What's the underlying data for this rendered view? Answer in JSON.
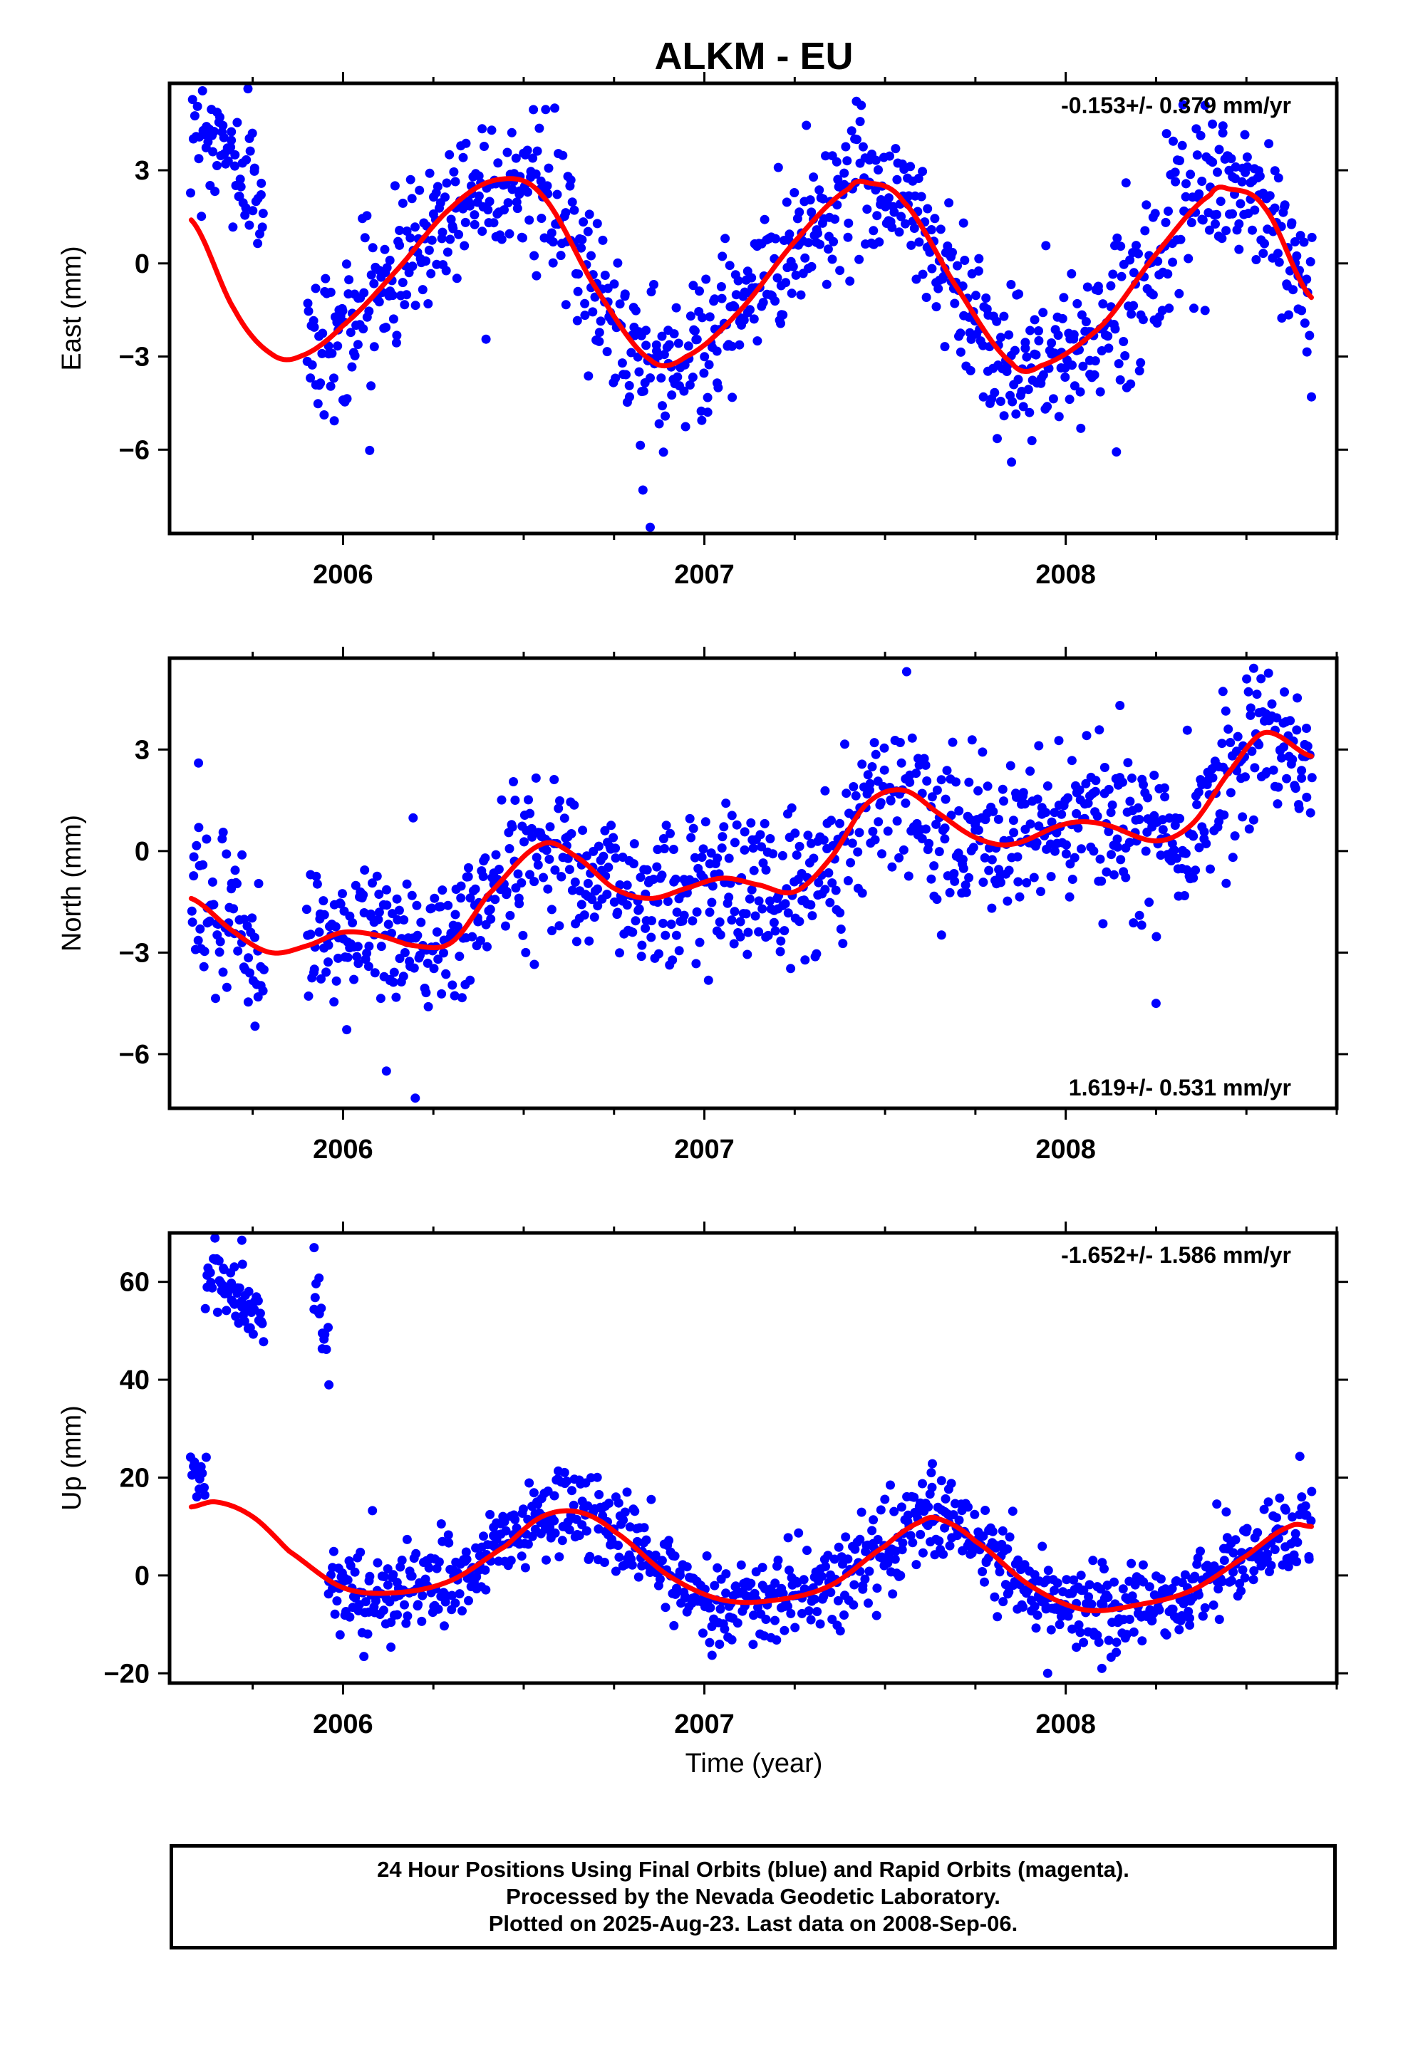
{
  "title": "ALKM - EU",
  "xlabel": "Time (year)",
  "footer": {
    "line1": "24 Hour Positions Using Final Orbits (blue) and Rapid Orbits (magenta).",
    "line2": "Processed by the Nevada Geodetic Laboratory.",
    "line3": "Plotted on 2025-Aug-23. Last data on 2008-Sep-06."
  },
  "colors": {
    "points": "#0000ff",
    "model": "#ff0000",
    "axes": "#000000"
  },
  "chart_data": [
    {
      "type": "scatter",
      "name": "east",
      "ylabel": "East (mm)",
      "xlim": [
        2005.52,
        2008.75
      ],
      "ylim": [
        -8.7,
        5.8
      ],
      "xticks": [
        2006,
        2007,
        2008
      ],
      "xtick_labels": [
        "2006",
        "2007",
        "2008"
      ],
      "yticks": [
        3,
        0,
        -3,
        -6
      ],
      "ytick_labels": [
        "3",
        "0",
        "−3",
        "−6"
      ],
      "rate_text": "-0.153+/- 0.379 mm/yr",
      "rate_position": "top-right",
      "model_line": {
        "x": [
          2005.58,
          2005.7,
          2005.8,
          2005.88,
          2006.0,
          2006.15,
          2006.3,
          2006.43,
          2006.55,
          2006.7,
          2006.85,
          2006.95,
          2007.1,
          2007.25,
          2007.4,
          2007.45,
          2007.55,
          2007.7,
          2007.85,
          2007.93,
          2008.1,
          2008.25,
          2008.4,
          2008.45,
          2008.55,
          2008.68
        ],
        "y": [
          1.4,
          -1.5,
          -2.9,
          -3.0,
          -2.0,
          -0.2,
          1.8,
          2.7,
          2.2,
          -0.8,
          -3.1,
          -3.0,
          -1.5,
          0.7,
          2.4,
          2.6,
          2.0,
          -0.8,
          -3.2,
          -3.3,
          -2.0,
          0.3,
          2.2,
          2.4,
          1.8,
          -1.1
        ]
      },
      "segments": [
        {
          "x0": 2005.58,
          "x1": 2005.78,
          "base": [
            5.0,
            2.0
          ],
          "noise": 1.0,
          "count": 70
        },
        {
          "x0": 2005.9,
          "x1": 2008.68,
          "base": "model",
          "noise": 1.2,
          "count": 950
        }
      ],
      "extreme_points": [
        {
          "x": 2006.85,
          "y": -8.5
        },
        {
          "x": 2006.83,
          "y": -7.3
        },
        {
          "x": 2007.85,
          "y": -6.4
        },
        {
          "x": 2008.68,
          "y": -4.3
        },
        {
          "x": 2006.0,
          "y": -4.4
        }
      ]
    },
    {
      "type": "scatter",
      "name": "north",
      "ylabel": "North (mm)",
      "xlim": [
        2005.52,
        2008.75
      ],
      "ylim": [
        -7.6,
        5.7
      ],
      "xticks": [
        2006,
        2007,
        2008
      ],
      "xtick_labels": [
        "2006",
        "2007",
        "2008"
      ],
      "yticks": [
        3,
        0,
        -3,
        -6
      ],
      "ytick_labels": [
        "3",
        "0",
        "−3",
        "−6"
      ],
      "rate_text": "1.619+/- 0.531 mm/yr",
      "rate_position": "bottom-right",
      "model_line": {
        "x": [
          2005.58,
          2005.7,
          2005.8,
          2005.9,
          2006.0,
          2006.1,
          2006.2,
          2006.3,
          2006.4,
          2006.55,
          2006.65,
          2006.75,
          2006.85,
          2006.95,
          2007.05,
          2007.15,
          2007.25,
          2007.35,
          2007.45,
          2007.55,
          2007.65,
          2007.75,
          2007.85,
          2008.0,
          2008.1,
          2008.25,
          2008.35,
          2008.45,
          2008.55,
          2008.68
        ],
        "y": [
          -1.4,
          -2.4,
          -3.0,
          -2.8,
          -2.4,
          -2.5,
          -2.8,
          -2.7,
          -1.3,
          0.2,
          -0.2,
          -1.1,
          -1.4,
          -1.1,
          -0.8,
          -1.0,
          -1.2,
          -0.2,
          1.4,
          1.8,
          1.1,
          0.4,
          0.2,
          0.8,
          0.8,
          0.3,
          0.8,
          2.3,
          3.5,
          2.8
        ]
      },
      "segments": [
        {
          "x0": 2005.58,
          "x1": 2005.78,
          "base": "model",
          "noise": 1.1,
          "count": 70
        },
        {
          "x0": 2005.9,
          "x1": 2008.68,
          "base": "model",
          "noise": 1.1,
          "count": 950
        }
      ],
      "extreme_points": [
        {
          "x": 2006.2,
          "y": -7.3
        },
        {
          "x": 2006.12,
          "y": -6.5
        },
        {
          "x": 2008.25,
          "y": -4.5
        },
        {
          "x": 2005.6,
          "y": 2.6
        },
        {
          "x": 2008.52,
          "y": 5.4
        },
        {
          "x": 2008.15,
          "y": 4.3
        }
      ]
    },
    {
      "type": "scatter",
      "name": "up",
      "ylabel": "Up (mm)",
      "xlim": [
        2005.52,
        2008.75
      ],
      "ylim": [
        -22,
        70
      ],
      "xticks": [
        2006,
        2007,
        2008
      ],
      "xtick_labels": [
        "2006",
        "2007",
        "2008"
      ],
      "yticks": [
        60,
        40,
        20,
        0,
        -20
      ],
      "ytick_labels": [
        "60",
        "40",
        "20",
        "0",
        "−20"
      ],
      "rate_text": "-1.652+/- 1.586 mm/yr",
      "rate_position": "top-right",
      "model_line": {
        "x": [
          2005.58,
          2005.65,
          2005.75,
          2005.85,
          2006.0,
          2006.15,
          2006.3,
          2006.45,
          2006.55,
          2006.65,
          2006.75,
          2006.9,
          2007.05,
          2007.2,
          2007.35,
          2007.5,
          2007.6,
          2007.65,
          2007.75,
          2007.9,
          2008.05,
          2008.2,
          2008.35,
          2008.5,
          2008.62,
          2008.68
        ],
        "y": [
          14,
          15,
          12,
          5,
          -2.5,
          -3.5,
          -1,
          6,
          12,
          13,
          9,
          0,
          -5,
          -5,
          -2,
          6,
          11,
          11.5,
          7,
          -2,
          -7,
          -6,
          -3,
          4,
          10,
          10
        ]
      },
      "segments": [
        {
          "x0": 2005.58,
          "x1": 2005.62,
          "base": [
            19,
            19
          ],
          "noise": 3.0,
          "count": 14
        },
        {
          "x0": 2005.62,
          "x1": 2005.78,
          "base": [
            62,
            53
          ],
          "noise": 3.5,
          "count": 60
        },
        {
          "x0": 2005.92,
          "x1": 2005.96,
          "base": [
            60,
            44
          ],
          "noise": 4.0,
          "count": 14
        },
        {
          "x0": 2005.96,
          "x1": 2008.68,
          "base": "model",
          "noise": 4.5,
          "count": 940
        }
      ],
      "extreme_points": [
        {
          "x": 2005.72,
          "y": 68.5
        },
        {
          "x": 2005.92,
          "y": 67
        },
        {
          "x": 2007.63,
          "y": 18
        },
        {
          "x": 2007.95,
          "y": -20
        },
        {
          "x": 2008.1,
          "y": -19
        }
      ]
    }
  ]
}
